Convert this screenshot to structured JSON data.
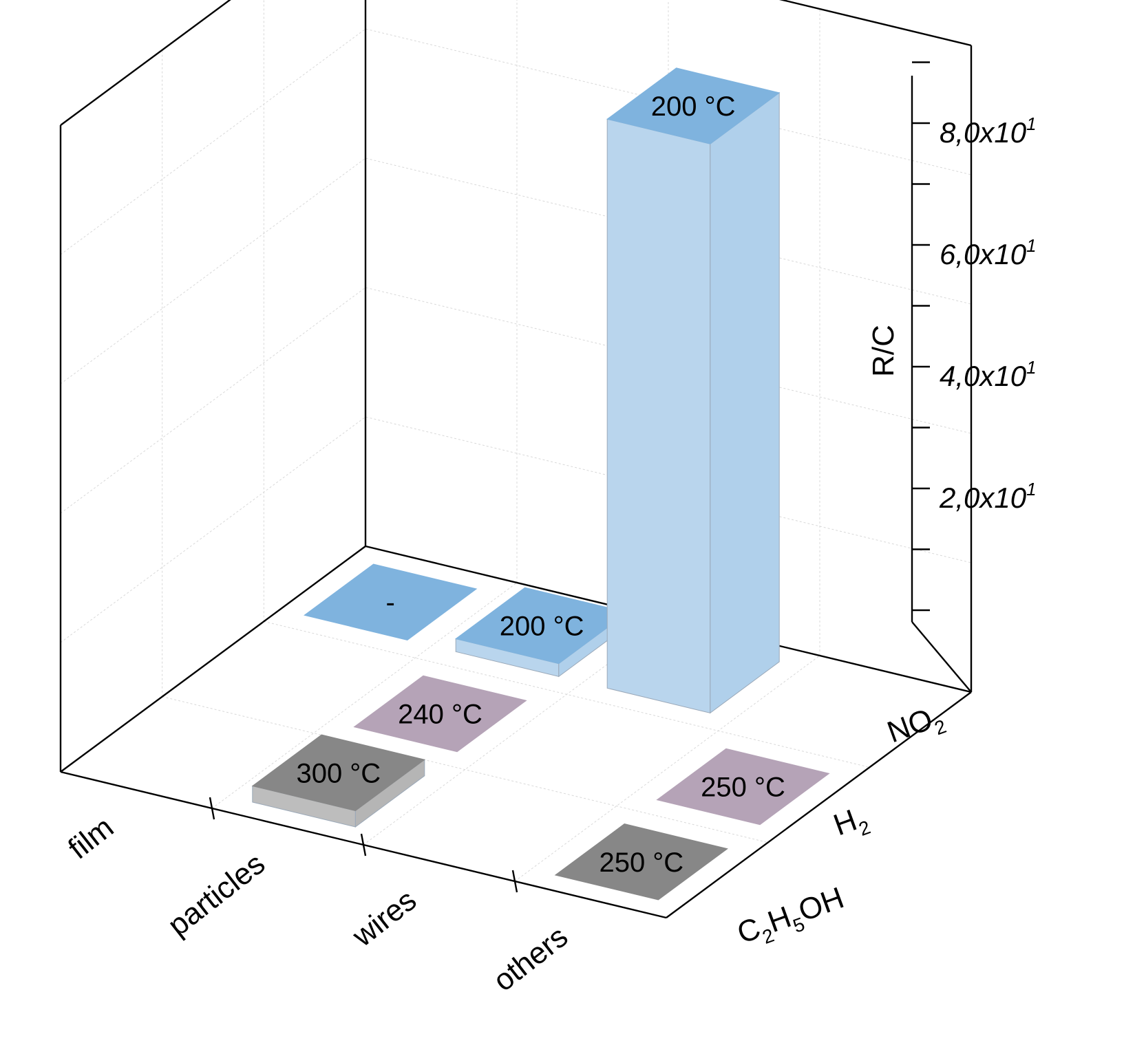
{
  "chart_data": {
    "type": "bar3d",
    "title": "",
    "x_axis": {
      "categories": [
        "film",
        "particles",
        "wires",
        "others"
      ]
    },
    "y_axis": {
      "categories": [
        "NO",
        "H",
        "C",
        "H",
        "OH"
      ],
      "labels": [
        {
          "parts": [
            {
              "t": "NO"
            },
            {
              "t": "2",
              "sub": true
            }
          ]
        },
        {
          "parts": [
            {
              "t": "H"
            },
            {
              "t": "2",
              "sub": true
            }
          ]
        },
        {
          "parts": [
            {
              "t": "C"
            },
            {
              "t": "2",
              "sub": true
            },
            {
              "t": "H"
            },
            {
              "t": "5",
              "sub": true
            },
            {
              "t": "OH"
            }
          ]
        }
      ]
    },
    "z_axis": {
      "label": "R/C",
      "range": [
        0,
        100
      ],
      "tick_values": [
        20,
        40,
        60,
        80
      ],
      "tick_labels": [
        "2,0x10",
        "4,0x10",
        "6,0x10",
        "8,0x10"
      ],
      "tick_exponent": "1"
    },
    "bars": [
      {
        "x": "film",
        "y": "NO2",
        "value": 0,
        "label": "-",
        "color": "#7fb3de"
      },
      {
        "x": "particles",
        "y": "NO2",
        "value": 2,
        "label": "200 °C",
        "color": "#7fb3de"
      },
      {
        "x": "wires",
        "y": "NO2",
        "value": 88,
        "label": "200 °C",
        "color": "#7fb3de"
      },
      {
        "x": "particles",
        "y": "H2",
        "value": 0,
        "label": "240 °C",
        "color": "#b5a3b7"
      },
      {
        "x": "others",
        "y": "H2",
        "value": 0,
        "label": "250 °C",
        "color": "#b5a3b7"
      },
      {
        "x": "particles",
        "y": "C2H5OH",
        "value": 2.5,
        "label": "300 °C",
        "color": "#878787"
      },
      {
        "x": "others",
        "y": "C2H5OH",
        "value": 0,
        "label": "250 °C",
        "color": "#878787"
      }
    ]
  }
}
